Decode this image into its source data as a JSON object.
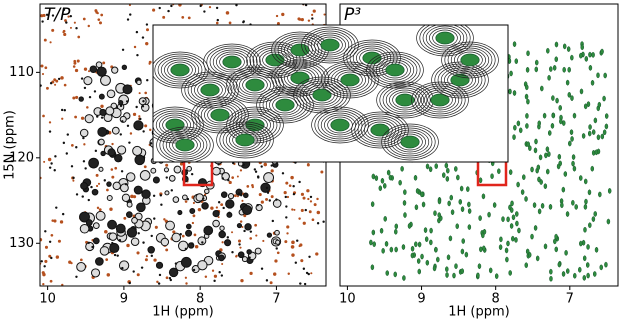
{
  "chart_data": [
    {
      "type": "contour",
      "title": "T/P",
      "xlabel": "1H (ppm)",
      "ylabel": "15N (ppm)",
      "xlim": [
        10.1,
        6.35
      ],
      "xticks": [
        10,
        9,
        8,
        7
      ],
      "ylim": [
        135,
        102
      ],
      "yticks": [
        110,
        120,
        130
      ]
    },
    {
      "type": "contour",
      "title": "P³",
      "xlabel": "1H (ppm)",
      "xlim": [
        10.1,
        6.35
      ],
      "xticks": [
        10,
        9,
        8,
        7
      ],
      "ylim": [
        135,
        102
      ]
    }
  ]
}
